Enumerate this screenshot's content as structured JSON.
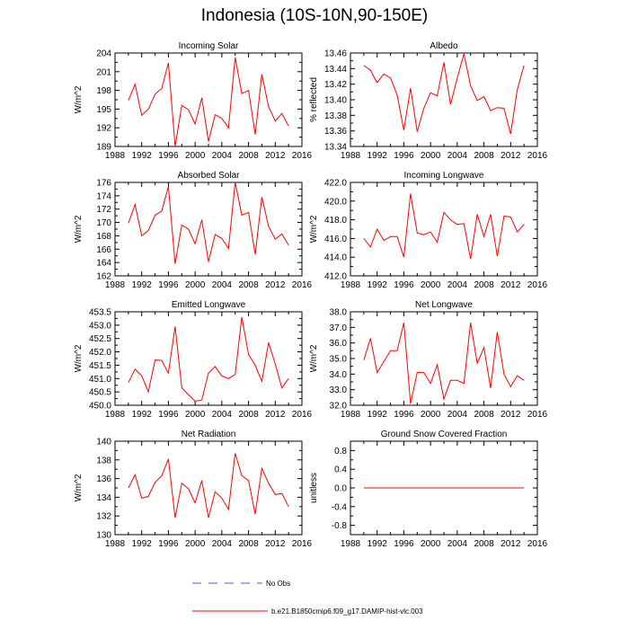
{
  "title": "Indonesia (10S-10N,90-150E)",
  "colors": {
    "series": "#ff0000",
    "obs": "#5050ff",
    "frame": "#000000"
  },
  "x_ticks": [
    1988,
    1992,
    1996,
    2000,
    2004,
    2008,
    2012,
    2016
  ],
  "legend": {
    "obs_label": "No Obs",
    "model_label": "b.e21.B1850cmip6.f09_g17.DAMIP-hist-vlc.003"
  },
  "chart_data": [
    {
      "type": "line",
      "title": "Incoming Solar",
      "ylabel": "W/m^2",
      "xlim": [
        1988,
        2016
      ],
      "ylim": [
        189,
        204
      ],
      "yticks": [
        189,
        192,
        195,
        198,
        201,
        204
      ],
      "ytick_labels": [
        "189",
        "192",
        "195",
        "198",
        "201",
        "204"
      ],
      "x": [
        1990,
        1991,
        1992,
        1993,
        1994,
        1995,
        1996,
        1997,
        1998,
        1999,
        2000,
        2001,
        2002,
        2003,
        2004,
        2005,
        2006,
        2007,
        2008,
        2009,
        2010,
        2011,
        2012,
        2013,
        2014
      ],
      "values": [
        196.4,
        199.0,
        194.0,
        195.0,
        197.4,
        198.3,
        202.4,
        189.0,
        195.6,
        194.9,
        192.6,
        196.8,
        189.8,
        194.1,
        193.5,
        192.0,
        203.3,
        197.5,
        198.0,
        190.9,
        200.6,
        195.4,
        193.1,
        194.3,
        192.3
      ]
    },
    {
      "type": "line",
      "title": "Albedo",
      "ylabel": "% reflected",
      "xlim": [
        1988,
        2016
      ],
      "ylim": [
        13.34,
        13.46
      ],
      "yticks": [
        13.34,
        13.36,
        13.38,
        13.4,
        13.42,
        13.44,
        13.46
      ],
      "ytick_labels": [
        "13.34",
        "13.36",
        "13.38",
        "13.40",
        "13.42",
        "13.44",
        "13.46"
      ],
      "x": [
        1990,
        1991,
        1992,
        1993,
        1994,
        1995,
        1996,
        1997,
        1998,
        1999,
        2000,
        2001,
        2002,
        2003,
        2004,
        2005,
        2006,
        2007,
        2008,
        2009,
        2010,
        2011,
        2012,
        2013,
        2014
      ],
      "values": [
        13.444,
        13.438,
        13.422,
        13.433,
        13.428,
        13.406,
        13.361,
        13.415,
        13.359,
        13.389,
        13.409,
        13.405,
        13.448,
        13.394,
        13.428,
        13.459,
        13.418,
        13.399,
        13.404,
        13.386,
        13.39,
        13.389,
        13.356,
        13.413,
        13.444
      ]
    },
    {
      "type": "line",
      "title": "Absorbed Solar",
      "ylabel": "W/m^2",
      "xlim": [
        1988,
        2016
      ],
      "ylim": [
        162,
        176
      ],
      "yticks": [
        162,
        164,
        166,
        168,
        170,
        172,
        174,
        176
      ],
      "ytick_labels": [
        "162",
        "164",
        "166",
        "168",
        "170",
        "172",
        "174",
        "176"
      ],
      "x": [
        1990,
        1991,
        1992,
        1993,
        1994,
        1995,
        1996,
        1997,
        1998,
        1999,
        2000,
        2001,
        2002,
        2003,
        2004,
        2005,
        2006,
        2007,
        2008,
        2009,
        2010,
        2011,
        2012,
        2013,
        2014
      ],
      "values": [
        169.9,
        172.7,
        168.0,
        168.8,
        171.1,
        171.7,
        175.4,
        163.8,
        169.6,
        169.0,
        166.8,
        170.4,
        164.1,
        168.2,
        167.6,
        166.1,
        176.0,
        171.1,
        171.5,
        165.2,
        173.8,
        169.4,
        167.5,
        168.3,
        166.6
      ]
    },
    {
      "type": "line",
      "title": "Incoming Longwave",
      "ylabel": "W/m^2",
      "xlim": [
        1988,
        2016
      ],
      "ylim": [
        412,
        422
      ],
      "yticks": [
        412,
        414,
        416,
        418,
        420,
        422
      ],
      "ytick_labels": [
        "412.0",
        "414.0",
        "416.0",
        "418.0",
        "420.0",
        "422.0"
      ],
      "x": [
        1990,
        1991,
        1992,
        1993,
        1994,
        1995,
        1996,
        1997,
        1998,
        1999,
        2000,
        2001,
        2002,
        2003,
        2004,
        2005,
        2006,
        2007,
        2008,
        2009,
        2010,
        2011,
        2012,
        2013,
        2014
      ],
      "values": [
        416.0,
        415.1,
        417.0,
        415.8,
        416.2,
        416.2,
        414.0,
        420.8,
        416.6,
        416.4,
        416.7,
        415.6,
        418.8,
        418.0,
        417.5,
        417.6,
        413.8,
        418.6,
        416.2,
        418.6,
        414.1,
        418.4,
        418.3,
        416.7,
        417.5
      ]
    },
    {
      "type": "line",
      "title": "Emitted Longwave",
      "ylabel": "W/m^2",
      "xlim": [
        1988,
        2016
      ],
      "ylim": [
        450,
        453.5
      ],
      "yticks": [
        450,
        450.5,
        451,
        451.5,
        452,
        452.5,
        453,
        453.5
      ],
      "ytick_labels": [
        "450.0",
        "450.5",
        "451.0",
        "451.5",
        "452.0",
        "452.5",
        "453.0",
        "453.5"
      ],
      "x": [
        1990,
        1991,
        1992,
        1993,
        1994,
        1995,
        1996,
        1997,
        1998,
        1999,
        2000,
        2001,
        2002,
        2003,
        2004,
        2005,
        2006,
        2007,
        2008,
        2009,
        2010,
        2011,
        2012,
        2013,
        2014
      ],
      "values": [
        450.85,
        451.35,
        451.1,
        450.5,
        451.7,
        451.68,
        451.2,
        452.95,
        450.65,
        450.4,
        450.15,
        450.2,
        451.2,
        451.45,
        451.1,
        451.0,
        451.15,
        453.3,
        451.9,
        451.5,
        450.9,
        452.35,
        451.55,
        450.65,
        451.0
      ]
    },
    {
      "type": "line",
      "title": "Net Longwave",
      "ylabel": "W/m^2",
      "xlim": [
        1988,
        2016
      ],
      "ylim": [
        32,
        38
      ],
      "yticks": [
        32,
        33,
        34,
        35,
        36,
        37,
        38
      ],
      "ytick_labels": [
        "32.0",
        "33.0",
        "34.0",
        "35.0",
        "36.0",
        "37.0",
        "38.0"
      ],
      "x": [
        1990,
        1991,
        1992,
        1993,
        1994,
        1995,
        1996,
        1997,
        1998,
        1999,
        2000,
        2001,
        2002,
        2003,
        2004,
        2005,
        2006,
        2007,
        2008,
        2009,
        2010,
        2011,
        2012,
        2013,
        2014
      ],
      "values": [
        34.9,
        36.3,
        34.1,
        34.8,
        35.5,
        35.5,
        37.3,
        32.1,
        34.1,
        34.1,
        33.4,
        34.6,
        32.4,
        33.6,
        33.6,
        33.4,
        37.3,
        34.7,
        35.7,
        33.1,
        36.7,
        34.0,
        33.2,
        33.9,
        33.6
      ]
    },
    {
      "type": "line",
      "title": "Net Radiation",
      "ylabel": "W/m^2",
      "xlim": [
        1988,
        2016
      ],
      "ylim": [
        130,
        140
      ],
      "yticks": [
        130,
        132,
        134,
        136,
        138,
        140
      ],
      "ytick_labels": [
        "130",
        "132",
        "134",
        "136",
        "138",
        "140"
      ],
      "x": [
        1990,
        1991,
        1992,
        1993,
        1994,
        1995,
        1996,
        1997,
        1998,
        1999,
        2000,
        2001,
        2002,
        2003,
        2004,
        2005,
        2006,
        2007,
        2008,
        2009,
        2010,
        2011,
        2012,
        2013,
        2014
      ],
      "values": [
        135.0,
        136.4,
        133.9,
        134.1,
        135.6,
        136.3,
        138.1,
        131.8,
        135.5,
        134.9,
        133.4,
        135.8,
        131.8,
        134.6,
        133.9,
        132.7,
        138.7,
        136.3,
        135.8,
        132.2,
        137.1,
        135.5,
        134.3,
        134.4,
        133.0
      ]
    },
    {
      "type": "line",
      "title": "Ground Snow Covered Fraction",
      "ylabel": "unitless",
      "xlim": [
        1988,
        2016
      ],
      "ylim": [
        -1,
        1
      ],
      "yticks": [
        -0.8,
        -0.4,
        0,
        0.4,
        0.8
      ],
      "ytick_labels": [
        "-0.8",
        "-0.4",
        "0.0",
        "0.4",
        "0.8"
      ],
      "x": [
        1990,
        1991,
        1992,
        1993,
        1994,
        1995,
        1996,
        1997,
        1998,
        1999,
        2000,
        2001,
        2002,
        2003,
        2004,
        2005,
        2006,
        2007,
        2008,
        2009,
        2010,
        2011,
        2012,
        2013,
        2014
      ],
      "values": [
        0,
        0,
        0,
        0,
        0,
        0,
        0,
        0,
        0,
        0,
        0,
        0,
        0,
        0,
        0,
        0,
        0,
        0,
        0,
        0,
        0,
        0,
        0,
        0,
        0
      ]
    }
  ]
}
